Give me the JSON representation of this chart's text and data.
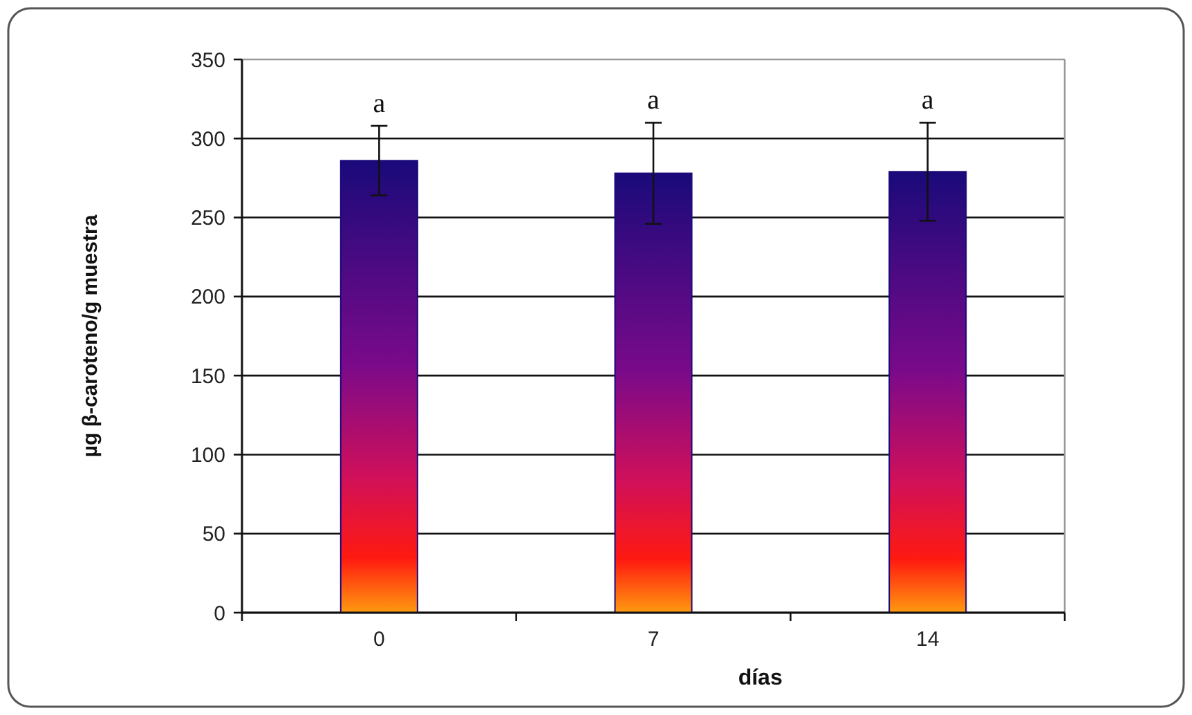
{
  "chart_data": {
    "type": "bar",
    "xlabel": "días",
    "ylabel": "µg β-caroteno/g  muestra",
    "categories": [
      "0",
      "7",
      "14"
    ],
    "values": [
      286,
      278,
      279
    ],
    "errors": [
      22,
      32,
      31
    ],
    "color": "#1a0a7a",
    "ylim": [
      0,
      350
    ],
    "yticks": [
      0,
      50,
      100,
      150,
      200,
      250,
      300,
      350
    ],
    "grid": "y",
    "annotations": [
      "a",
      "a",
      "a"
    ]
  }
}
